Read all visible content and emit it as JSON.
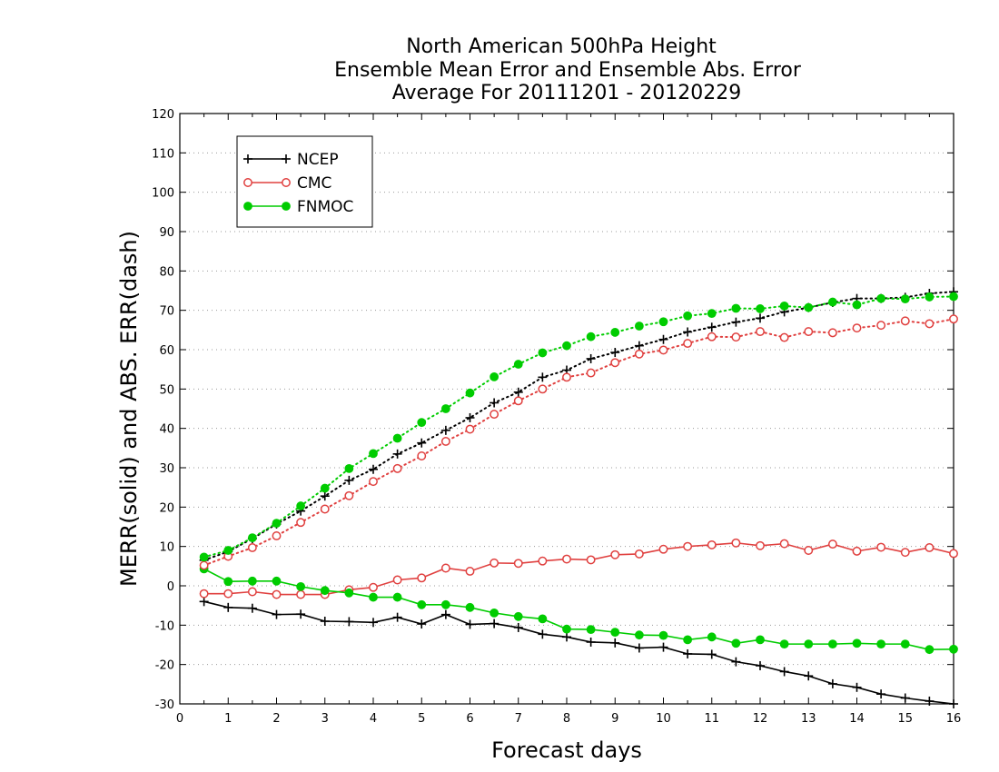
{
  "chart_data": {
    "type": "line",
    "title_lines": [
      "North American 500hPa Height",
      "Ensemble Mean Error and Ensemble Abs. Error",
      "Average For 20111201 - 20120229"
    ],
    "xlabel": "Forecast days",
    "ylabel": "MERR(solid) and ABS. ERR(dash)",
    "xlim": [
      0,
      16
    ],
    "ylim": [
      -30,
      120
    ],
    "x_ticks": [
      "0",
      "1",
      "2",
      "3",
      "4",
      "5",
      "6",
      "7",
      "8",
      "9",
      "10",
      "11",
      "12",
      "13",
      "14",
      "15",
      "16"
    ],
    "y_ticks": [
      "-30",
      "-20",
      "-10",
      "0",
      "10",
      "20",
      "30",
      "40",
      "50",
      "60",
      "70",
      "80",
      "90",
      "100",
      "110",
      "120"
    ],
    "grid": "horizontal dotted",
    "legend": {
      "position": "top-left",
      "entries": [
        "NCEP",
        "CMC",
        "FNMOC"
      ]
    },
    "x": [
      0.5,
      1,
      1.5,
      2,
      2.5,
      3,
      3.5,
      4,
      4.5,
      5,
      5.5,
      6,
      6.5,
      7,
      7.5,
      8,
      8.5,
      9,
      9.5,
      10,
      10.5,
      11,
      11.5,
      12,
      12.5,
      13,
      13.5,
      14,
      14.5,
      15,
      15.5,
      16
    ],
    "series": [
      {
        "name": "NCEP",
        "kind": "merr",
        "style": "solid",
        "color": "#000000",
        "marker": "plus",
        "values": [
          -4,
          -5.5,
          -5.7,
          -7.3,
          -7.2,
          -9,
          -9.1,
          -9.3,
          -8,
          -9.7,
          -7.3,
          -9.8,
          -9.6,
          -10.6,
          -12.3,
          -13,
          -14.3,
          -14.5,
          -15.8,
          -15.6,
          -17.3,
          -17.4,
          -19.3,
          -20.3,
          -21.8,
          -22.9,
          -24.9,
          -25.8,
          -27.5,
          -28.5,
          -29.3,
          -30
        ]
      },
      {
        "name": "CMC",
        "kind": "merr",
        "style": "solid",
        "color": "#e0403f",
        "marker": "open-circle",
        "values": [
          -2,
          -2,
          -1.5,
          -2.2,
          -2.2,
          -2.2,
          -1,
          -0.4,
          1.5,
          2,
          4.5,
          3.7,
          5.8,
          5.7,
          6.3,
          6.8,
          6.6,
          7.9,
          8.1,
          9.3,
          10,
          10.4,
          10.9,
          10.2,
          10.7,
          9,
          10.6,
          8.8,
          9.8,
          8.5,
          9.7,
          8.2
        ]
      },
      {
        "name": "FNMOC",
        "kind": "merr",
        "style": "solid",
        "color": "#00cc00",
        "marker": "filled-circle",
        "values": [
          4.3,
          1.1,
          1.2,
          1.2,
          -0.2,
          -1.2,
          -1.8,
          -2.9,
          -2.9,
          -4.8,
          -4.8,
          -5.5,
          -6.9,
          -7.8,
          -8.4,
          -11,
          -11.1,
          -11.8,
          -12.5,
          -12.6,
          -13.7,
          -13,
          -14.6,
          -13.7,
          -14.8,
          -14.8,
          -14.8,
          -14.6,
          -14.8,
          -14.8,
          -16.2,
          -16.1
        ]
      },
      {
        "name": "NCEP",
        "kind": "abs",
        "style": "dotted",
        "color": "#000000",
        "marker": "plus",
        "values": [
          6.5,
          8.7,
          12,
          15.7,
          19,
          22.8,
          26.8,
          29.6,
          33.5,
          36.3,
          39.5,
          42.7,
          46.5,
          49.2,
          53,
          54.8,
          57.7,
          59.3,
          61,
          62.6,
          64.5,
          65.7,
          67,
          68,
          69.6,
          70.7,
          72,
          73,
          73,
          73.3,
          74.3,
          74.7
        ]
      },
      {
        "name": "CMC",
        "kind": "abs",
        "style": "dotted",
        "color": "#e0403f",
        "marker": "open-circle",
        "values": [
          5.2,
          7.5,
          9.7,
          12.7,
          16.1,
          19.5,
          22.9,
          26.5,
          29.8,
          33,
          36.7,
          39.8,
          43.6,
          47,
          50,
          53,
          54.1,
          56.7,
          58.9,
          59.9,
          61.6,
          63.3,
          63.2,
          64.6,
          63.1,
          64.6,
          64.3,
          65.5,
          66.2,
          67.3,
          66.6,
          67.8
        ]
      },
      {
        "name": "FNMOC",
        "kind": "abs",
        "style": "dotted",
        "color": "#00cc00",
        "marker": "filled-circle",
        "values": [
          7.3,
          9,
          12.2,
          15.9,
          20.3,
          24.8,
          29.8,
          33.6,
          37.5,
          41.5,
          45,
          49,
          53.1,
          56.3,
          59.2,
          61,
          63.3,
          64.4,
          66,
          67.1,
          68.6,
          69.2,
          70.5,
          70.4,
          71.1,
          70.7,
          72.1,
          71.4,
          73,
          72.9,
          73.4,
          73.5
        ]
      }
    ]
  }
}
